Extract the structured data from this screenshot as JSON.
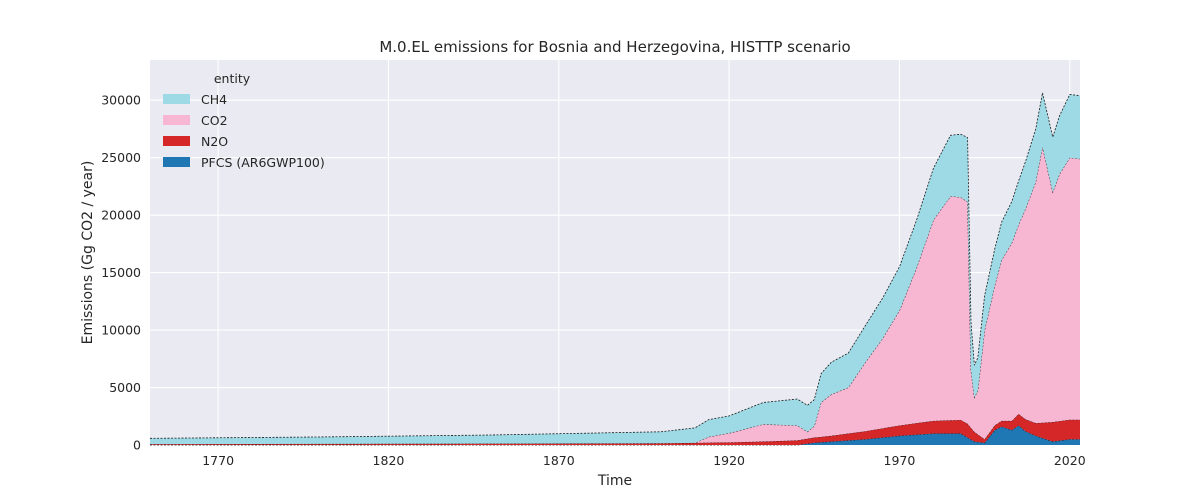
{
  "chart_data": {
    "type": "area",
    "title": "M.0.EL emissions for Bosnia and Herzegovina, HISTTP scenario",
    "xlabel": "Time",
    "ylabel": "Emissions (Gg CO2 / year)",
    "xlim": [
      1750,
      2023
    ],
    "ylim": [
      0,
      33500
    ],
    "x_ticks": [
      1770,
      1820,
      1870,
      1920,
      1970,
      2020
    ],
    "y_ticks": [
      0,
      5000,
      10000,
      15000,
      20000,
      25000,
      30000
    ],
    "grid": true,
    "legend": {
      "title": "entity",
      "placement": "top-left"
    },
    "stacking_order": [
      "PFCS (AR6GWP100)",
      "N2O",
      "CO2",
      "CH4"
    ],
    "series": [
      {
        "name": "CH4",
        "color": "#9edae5",
        "points": [
          [
            1750,
            500
          ],
          [
            1800,
            600
          ],
          [
            1850,
            750
          ],
          [
            1900,
            1000
          ],
          [
            1910,
            1300
          ],
          [
            1914,
            1500
          ],
          [
            1920,
            1500
          ],
          [
            1930,
            1900
          ],
          [
            1940,
            2300
          ],
          [
            1945,
            2300
          ],
          [
            1950,
            2800
          ],
          [
            1960,
            3200
          ],
          [
            1970,
            3800
          ],
          [
            1980,
            4500
          ],
          [
            1985,
            5300
          ],
          [
            1990,
            5600
          ],
          [
            1992,
            2800
          ],
          [
            1995,
            3000
          ],
          [
            2000,
            3300
          ],
          [
            2005,
            3800
          ],
          [
            2010,
            4600
          ],
          [
            2012,
            4700
          ],
          [
            2015,
            4800
          ],
          [
            2020,
            5500
          ],
          [
            2023,
            5500
          ]
        ]
      },
      {
        "name": "CO2",
        "color": "#f7b6d2",
        "points": [
          [
            1750,
            0
          ],
          [
            1800,
            0
          ],
          [
            1850,
            0
          ],
          [
            1900,
            0
          ],
          [
            1910,
            0
          ],
          [
            1914,
            500
          ],
          [
            1920,
            800
          ],
          [
            1930,
            1500
          ],
          [
            1940,
            1300
          ],
          [
            1943,
            600
          ],
          [
            1945,
            1000
          ],
          [
            1947,
            3000
          ],
          [
            1950,
            3600
          ],
          [
            1955,
            4000
          ],
          [
            1960,
            6000
          ],
          [
            1965,
            7800
          ],
          [
            1970,
            10000
          ],
          [
            1975,
            13500
          ],
          [
            1980,
            17500
          ],
          [
            1985,
            19500
          ],
          [
            1990,
            19300
          ],
          [
            1991,
            5000
          ],
          [
            1992,
            3000
          ],
          [
            1993,
            3800
          ],
          [
            1995,
            9500
          ],
          [
            2000,
            14000
          ],
          [
            2005,
            16500
          ],
          [
            2010,
            21000
          ],
          [
            2012,
            24000
          ],
          [
            2015,
            20000
          ],
          [
            2017,
            21500
          ],
          [
            2020,
            22800
          ],
          [
            2023,
            22700
          ]
        ]
      },
      {
        "name": "N2O",
        "color": "#d62728",
        "points": [
          [
            1750,
            80
          ],
          [
            1850,
            120
          ],
          [
            1900,
            150
          ],
          [
            1920,
            230
          ],
          [
            1930,
            300
          ],
          [
            1940,
            400
          ],
          [
            1950,
            500
          ],
          [
            1960,
            700
          ],
          [
            1970,
            900
          ],
          [
            1980,
            1100
          ],
          [
            1990,
            1200
          ],
          [
            1995,
            300
          ],
          [
            2000,
            500
          ],
          [
            2005,
            1000
          ],
          [
            2010,
            1100
          ],
          [
            2015,
            1700
          ],
          [
            2020,
            1700
          ],
          [
            2023,
            1700
          ]
        ]
      },
      {
        "name": "PFCS (AR6GWP100)",
        "color": "#1f77b4",
        "points": [
          [
            1750,
            0
          ],
          [
            1940,
            0
          ],
          [
            1945,
            200
          ],
          [
            1950,
            300
          ],
          [
            1960,
            500
          ],
          [
            1970,
            800
          ],
          [
            1980,
            1000
          ],
          [
            1988,
            1000
          ],
          [
            1992,
            300
          ],
          [
            1995,
            200
          ],
          [
            1998,
            1300
          ],
          [
            2000,
            1600
          ],
          [
            2003,
            1300
          ],
          [
            2005,
            1700
          ],
          [
            2007,
            1200
          ],
          [
            2010,
            800
          ],
          [
            2015,
            300
          ],
          [
            2020,
            500
          ],
          [
            2023,
            500
          ]
        ]
      }
    ]
  }
}
